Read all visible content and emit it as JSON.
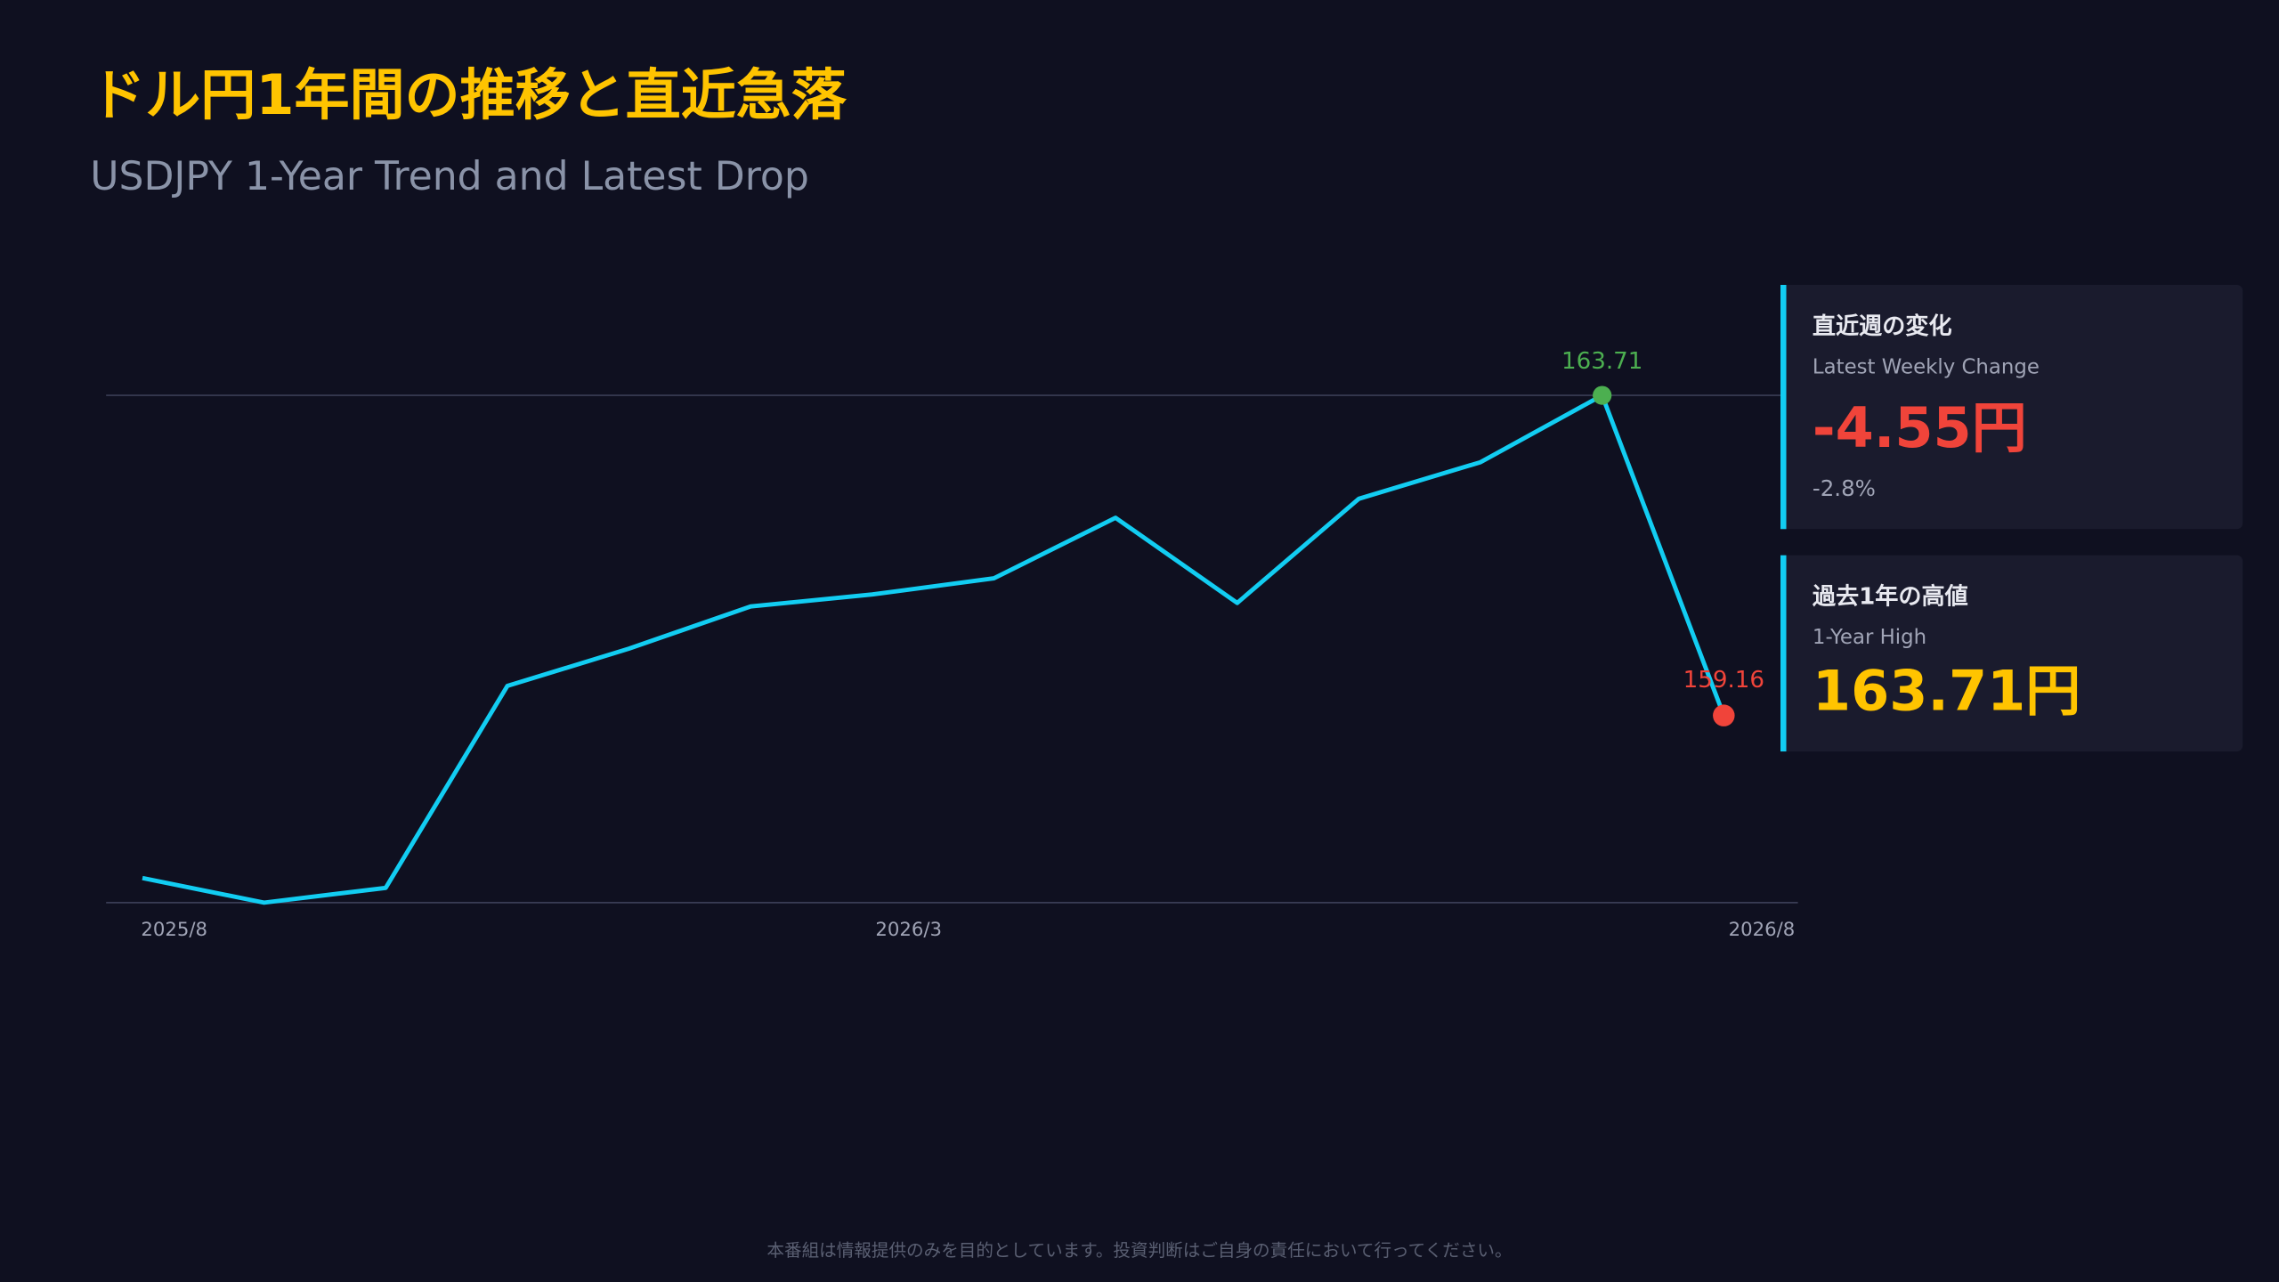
{
  "chart_data": {
    "type": "line",
    "title": "ドル円1年間の推移と直近急落",
    "subtitle": "USDJPY 1-Year Trend and Latest Drop",
    "categories": [
      "2025/8",
      null,
      null,
      null,
      null,
      null,
      "2026/3",
      null,
      null,
      null,
      null,
      null,
      null,
      "2026/8"
    ],
    "values": [
      156.85,
      156.5,
      156.71,
      159.58,
      160.11,
      160.71,
      160.88,
      161.11,
      161.97,
      160.76,
      162.24,
      162.76,
      163.71,
      159.16
    ],
    "color": "#12cdf2",
    "ylim": [
      156.5,
      163.71
    ],
    "markers": [
      {
        "index": 12,
        "color": "#4caf50"
      },
      {
        "index": 13,
        "color": "#f0443a"
      }
    ]
  },
  "cards": [
    {
      "title": "直近週の変化",
      "subtitle": "Latest Weekly Change",
      "value": "-4.55円",
      "note": "-2.8%",
      "color": "#f0443a"
    },
    {
      "title": "過去1年の高値",
      "subtitle": "1-Year High",
      "value": "163.71円",
      "color": "#ffc400"
    }
  ],
  "footer": "本番組は情報提供のみを目的としています。投資判断はご自身の責任において行ってください。"
}
